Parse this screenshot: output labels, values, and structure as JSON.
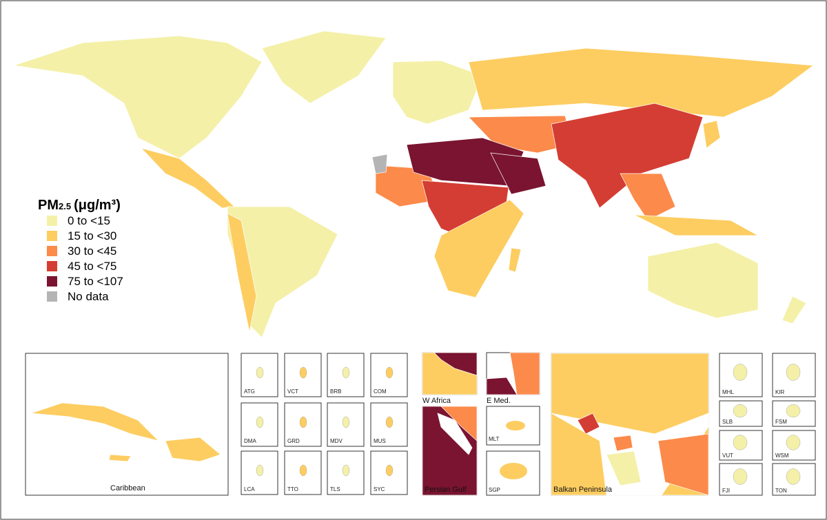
{
  "legend": {
    "title": {
      "main": "PM",
      "sub": "2.5",
      "unit": "(μg/m³)"
    },
    "items": [
      {
        "label": "0  to <15",
        "color": "#f4f0a8"
      },
      {
        "label": "15  to <30",
        "color": "#fdcd61"
      },
      {
        "label": "30  to <45",
        "color": "#fc8a4a"
      },
      {
        "label": "45  to <75",
        "color": "#d43d33"
      },
      {
        "label": "75  to <107",
        "color": "#7a1430"
      },
      {
        "label": "No data",
        "color": "#b4b4b4"
      }
    ]
  },
  "insets": [
    "Caribbean",
    "ATG",
    "VCT",
    "BRB",
    "COM",
    "DMA",
    "GRD",
    "MDV",
    "MUS",
    "LCA",
    "TTO",
    "TLS",
    "SYC",
    "W Africa",
    "E Med.",
    "Persian Gulf",
    "MLT",
    "SGP",
    "Balkan Peninsula",
    "MHL",
    "KIR",
    "SLB",
    "FSM",
    "VUT",
    "WSM",
    "FJI",
    "TON"
  ]
}
